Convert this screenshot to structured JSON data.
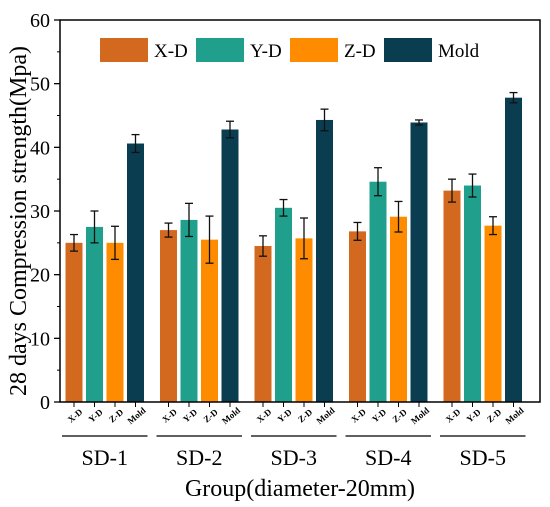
{
  "chart_data": {
    "type": "bar",
    "xlabel": "Group(diameter-20mm)",
    "ylabel": "28 days Compression strength(Mpa)",
    "ylim": [
      0,
      60
    ],
    "yticks": [
      0,
      10,
      20,
      30,
      40,
      50,
      60
    ],
    "categories": [
      "SD-1",
      "SD-2",
      "SD-3",
      "SD-4",
      "SD-5"
    ],
    "bar_labels": [
      "X-D",
      "Y-D",
      "Z-D",
      "Mold"
    ],
    "legend_position": "top",
    "series": [
      {
        "name": "X-D",
        "color": "#d2691e",
        "values": [
          25.0,
          27.0,
          24.5,
          26.8,
          33.2
        ],
        "errors": [
          1.3,
          1.1,
          1.6,
          1.4,
          1.8
        ]
      },
      {
        "name": "Y-D",
        "color": "#20a08c",
        "values": [
          27.5,
          28.6,
          30.5,
          34.6,
          34.0
        ],
        "errors": [
          2.5,
          2.6,
          1.3,
          2.2,
          1.8
        ]
      },
      {
        "name": "Z-D",
        "color": "#ff8c00",
        "values": [
          25.0,
          25.5,
          25.7,
          29.1,
          27.7
        ],
        "errors": [
          2.6,
          3.7,
          3.2,
          2.4,
          1.4
        ]
      },
      {
        "name": "Mold",
        "color": "#0b3d50",
        "values": [
          40.6,
          42.8,
          44.3,
          43.9,
          47.8
        ],
        "errors": [
          1.4,
          1.3,
          1.7,
          0.4,
          0.8
        ]
      }
    ]
  }
}
